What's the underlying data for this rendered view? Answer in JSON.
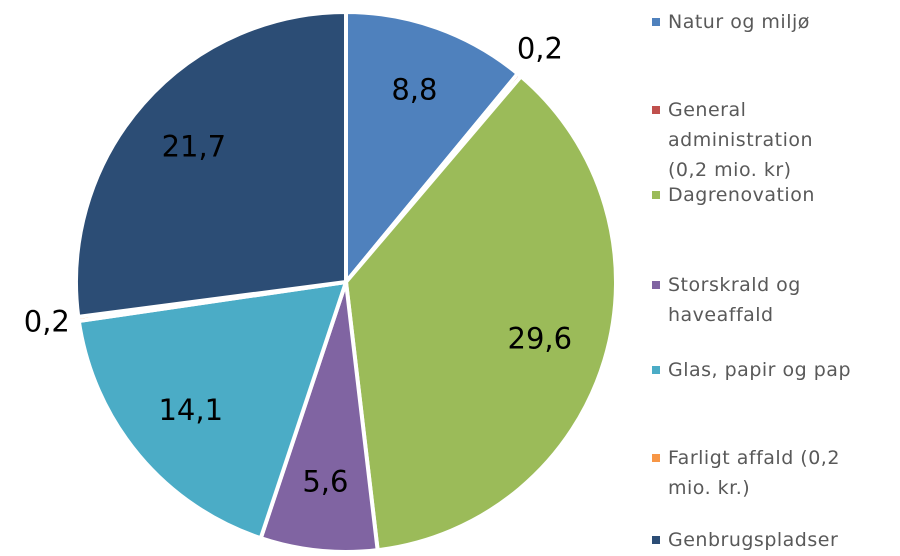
{
  "chart_data": {
    "type": "pie",
    "categories": [
      "Natur og miljø",
      "General administration (0,2 mio. kr)",
      "Dagrenovation",
      "Storskrald og haveaffald",
      "Glas, papir og pap",
      "Farligt affald (0,2 mio. kr.)",
      "Genbrugspladser"
    ],
    "values": [
      8.8,
      0.2,
      29.6,
      5.6,
      14.1,
      0.2,
      21.7
    ],
    "value_labels": [
      "8,8",
      "0,2",
      "29,6",
      "5,6",
      "14,1",
      "0,2",
      "21,7"
    ],
    "colors": [
      "#4f81bd",
      "#c0504d",
      "#9bbb59",
      "#8064a2",
      "#4bacc6",
      "#f79646",
      "#2c4d75"
    ],
    "legend": "right"
  }
}
